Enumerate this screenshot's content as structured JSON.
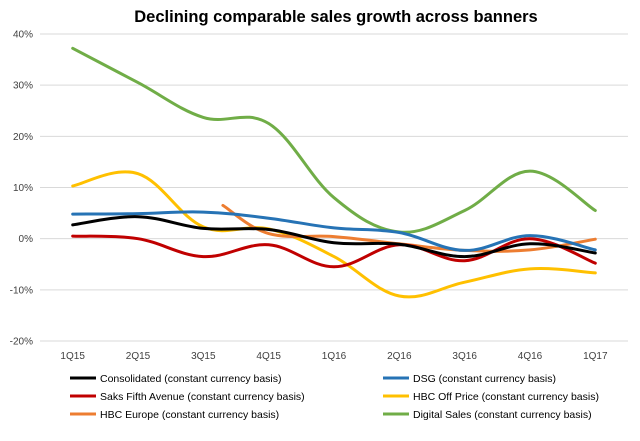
{
  "chart_data": {
    "type": "line",
    "title": "Declining comparable sales growth across banners",
    "xlabel": "",
    "ylabel": "",
    "categories": [
      "1Q15",
      "2Q15",
      "3Q15",
      "4Q15",
      "1Q16",
      "2Q16",
      "3Q16",
      "4Q16",
      "1Q17"
    ],
    "ylim": [
      -20,
      40
    ],
    "yticks": [
      -20,
      -10,
      0,
      10,
      20,
      30,
      40
    ],
    "ytick_labels": [
      "-20%",
      "-10%",
      "0%",
      "10%",
      "20%",
      "30%",
      "40%"
    ],
    "grid": true,
    "legend_position": "bottom",
    "series": [
      {
        "name": "Consolidated (constant currency basis)",
        "color": "#000000",
        "x": [
          0,
          1,
          2,
          3,
          4,
          5,
          6,
          7,
          8
        ],
        "values": [
          2.7,
          4.3,
          2.0,
          1.8,
          -0.8,
          -1.1,
          -3.5,
          -1.0,
          -2.8
        ]
      },
      {
        "name": "DSG (constant currency basis)",
        "color": "#2673b5",
        "x": [
          0,
          1,
          2,
          3,
          4,
          5,
          6,
          7,
          8
        ],
        "values": [
          4.8,
          4.9,
          5.2,
          4.0,
          2.1,
          1.2,
          -2.3,
          0.6,
          -2.2
        ]
      },
      {
        "name": "Saks Fifth Avenue (constant currency basis)",
        "color": "#c00000",
        "x": [
          0,
          1,
          2,
          3,
          4,
          5,
          6,
          7,
          8
        ],
        "values": [
          0.5,
          0.0,
          -3.5,
          -1.2,
          -5.5,
          -1.2,
          -4.3,
          0.0,
          -4.8
        ]
      },
      {
        "name": "HBC Off Price (constant currency basis)",
        "color": "#ffc000",
        "x": [
          0,
          1,
          2,
          3,
          4,
          5,
          6,
          7,
          8
        ],
        "values": [
          10.3,
          12.7,
          2.3,
          1.9,
          -3.5,
          -11.2,
          -8.5,
          -5.9,
          -6.7
        ]
      },
      {
        "name": "HBC Europe (constant currency basis)",
        "color": "#ed7d31",
        "x": [
          2.3,
          3,
          4,
          5,
          6,
          7,
          8
        ],
        "values": [
          6.5,
          1.0,
          0.4,
          -1.0,
          -2.3,
          -2.2,
          -0.1
        ]
      },
      {
        "name": "Digital Sales (constant currency basis)",
        "color": "#70ad47",
        "x": [
          0,
          1,
          2,
          3,
          4,
          5,
          6,
          7,
          8
        ],
        "values": [
          37.2,
          30.5,
          23.7,
          22.5,
          8.0,
          1.3,
          5.5,
          13.2,
          5.5
        ]
      }
    ]
  }
}
